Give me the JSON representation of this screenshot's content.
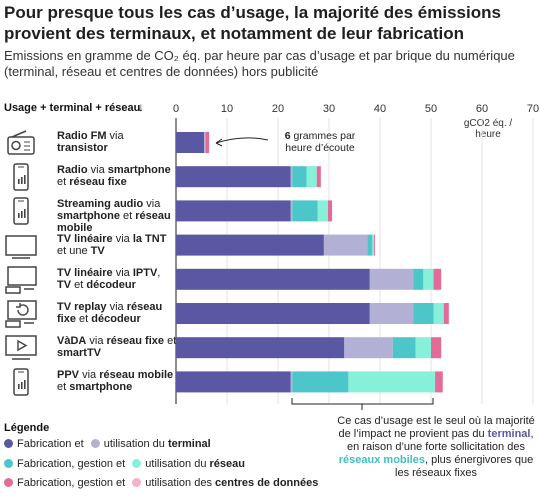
{
  "title": "Pour presque tous les cas d’usage, la majorité des émissions provient des terminaux, et notamment de leur fabrication",
  "subtitle": "Emissions en gramme de CO₂ éq. par heure par cas d’usage et par brique du numérique (terminal, réseau et centres de données) hors publicité",
  "sort_label": "Usage + terminal + réseau",
  "sort_arrow": "↓",
  "unit_label": "gCO2 éq. / heure",
  "colors": {
    "terminal_fab": "#5a57a3",
    "terminal_use": "#b3b0d6",
    "network_fab": "#4cc6c9",
    "network_use": "#86f0d8",
    "dc_fab": "#e46b97",
    "dc_use": "#f5b3cb"
  },
  "legend": {
    "title": "Légende",
    "rows": [
      {
        "pre": "Fabrication et",
        "mid": "utilisation du",
        "bold": "terminal"
      },
      {
        "pre": "Fabrication, gestion et",
        "mid": "utilisation du",
        "bold": "réseau"
      },
      {
        "pre": "Fabrication, gestion et",
        "mid": "utilisation des",
        "bold": "centres de données"
      }
    ]
  },
  "annotation_6g": {
    "bold": "6",
    "rest": "grammes par heure d’écoute"
  },
  "annotation_bottom": {
    "p1": "Ce cas d’usage est le seul où la majorité de l’impact ne provient pas du",
    "terminal": "terminal",
    "p2": ", en raison d’une forte sollicitation des",
    "network": "réseaux mobiles",
    "p3": ", plus énergivores que les réseaux fixes"
  },
  "categories": [
    {
      "icon": "radio-icon",
      "parts": [
        {
          "t": "Radio FM",
          "b": true
        },
        {
          "t": " via ",
          "b": false
        },
        {
          "t": "transistor",
          "b": true
        }
      ]
    },
    {
      "icon": "smartphone-icon",
      "parts": [
        {
          "t": "Radio",
          "b": true
        },
        {
          "t": " via ",
          "b": false
        },
        {
          "t": "smartphone",
          "b": true
        },
        {
          "t": " et ",
          "b": false
        },
        {
          "t": "réseau fixe",
          "b": true
        }
      ]
    },
    {
      "icon": "smartphone-icon",
      "parts": [
        {
          "t": "Streaming audio",
          "b": true
        },
        {
          "t": " via ",
          "b": false
        },
        {
          "t": "smartphone",
          "b": true
        },
        {
          "t": " et ",
          "b": false
        },
        {
          "t": "réseau mobile",
          "b": true
        }
      ]
    },
    {
      "icon": "tv-icon",
      "parts": [
        {
          "t": "TV linéaire",
          "b": true
        },
        {
          "t": " via ",
          "b": false
        },
        {
          "t": "la TNT",
          "b": true
        },
        {
          "t": " et une ",
          "b": false
        },
        {
          "t": "TV",
          "b": true
        }
      ]
    },
    {
      "icon": "tv-box-icon",
      "parts": [
        {
          "t": "TV linéaire",
          "b": true
        },
        {
          "t": " via ",
          "b": false
        },
        {
          "t": "IPTV",
          "b": true
        },
        {
          "t": ", ",
          "b": false
        },
        {
          "t": "TV",
          "b": true
        },
        {
          "t": " et ",
          "b": false
        },
        {
          "t": "décodeur",
          "b": true
        }
      ]
    },
    {
      "icon": "tv-replay-icon",
      "parts": [
        {
          "t": "TV replay",
          "b": true
        },
        {
          "t": " via ",
          "b": false
        },
        {
          "t": "réseau fixe",
          "b": true
        },
        {
          "t": " et ",
          "b": false
        },
        {
          "t": "décodeur",
          "b": true
        }
      ]
    },
    {
      "icon": "tv-play-icon",
      "parts": [
        {
          "t": "VàDA",
          "b": true
        },
        {
          "t": " via ",
          "b": false
        },
        {
          "t": "réseau fixe",
          "b": true
        },
        {
          "t": " et ",
          "b": false
        },
        {
          "t": "smartTV",
          "b": true
        }
      ]
    },
    {
      "icon": "smartphone-icon",
      "parts": [
        {
          "t": "PPV",
          "b": true
        },
        {
          "t": " via ",
          "b": false
        },
        {
          "t": "réseau mobile",
          "b": true
        },
        {
          "t": " et ",
          "b": false
        },
        {
          "t": "smartphone",
          "b": true
        }
      ]
    }
  ],
  "chart_data": {
    "type": "bar",
    "orientation": "horizontal",
    "stacked": true,
    "xlim": [
      0,
      70
    ],
    "ticks": [
      0,
      10,
      20,
      30,
      40,
      50,
      60,
      70
    ],
    "grid": true,
    "categories": [
      "Radio FM via transistor",
      "Radio via smartphone et réseau fixe",
      "Streaming audio via smartphone et réseau mobile",
      "TV linéaire via la TNT et une TV",
      "TV linéaire via IPTV, TV et décodeur",
      "TV replay via réseau fixe et décodeur",
      "VàDA via réseau fixe et smartTV",
      "PPV via réseau mobile et smartphone"
    ],
    "series": [
      {
        "name": "Fabrication terminal",
        "values": [
          5.5,
          22.5,
          22.5,
          29,
          38,
          38,
          33,
          22.5
        ]
      },
      {
        "name": "Utilisation terminal",
        "values": [
          0.3,
          0.3,
          0.3,
          8.5,
          8.5,
          8.5,
          9.5,
          0.3
        ]
      },
      {
        "name": "Fabrication, gestion réseau",
        "values": [
          0,
          2.8,
          5,
          1,
          2,
          4,
          4.5,
          11
        ]
      },
      {
        "name": "Utilisation réseau",
        "values": [
          0,
          2,
          2,
          0.3,
          2,
          2,
          3,
          17
        ]
      },
      {
        "name": "Fabrication, gestion centres de données",
        "values": [
          0.7,
          0.8,
          0.8,
          0.2,
          1.5,
          1,
          2,
          1.5
        ]
      },
      {
        "name": "Utilisation centres de données",
        "values": [
          0,
          0,
          0,
          0,
          0,
          0,
          0,
          0
        ]
      }
    ],
    "series_colors": [
      "#5a57a3",
      "#b3b0d6",
      "#4cc6c9",
      "#86f0d8",
      "#e46b97",
      "#f5b3cb"
    ]
  }
}
